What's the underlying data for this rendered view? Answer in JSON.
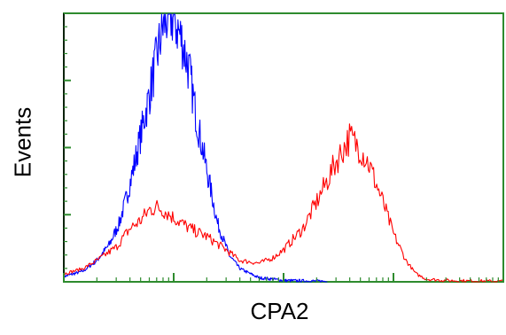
{
  "chart_data": {
    "type": "line",
    "title": "",
    "xlabel": "CPA2",
    "ylabel": "Events",
    "x_scale": "log",
    "xlim": [
      1,
      10000
    ],
    "ylim": [
      0,
      1
    ],
    "grid": false,
    "legend": "none",
    "axis_color": "#2e8b2e",
    "series": [
      {
        "color": "#0000ff",
        "x": [
          1,
          1.5,
          2,
          2.6,
          3.2,
          3.8,
          4.5,
          5.2,
          6,
          7,
          8,
          9,
          10,
          12,
          14,
          16,
          20,
          25,
          32,
          40,
          50,
          60,
          80,
          100,
          130,
          170,
          250
        ],
        "y": [
          0.02,
          0.04,
          0.08,
          0.14,
          0.22,
          0.33,
          0.46,
          0.58,
          0.7,
          0.84,
          0.96,
          1.0,
          0.99,
          0.9,
          0.78,
          0.62,
          0.42,
          0.22,
          0.1,
          0.05,
          0.03,
          0.015,
          0.01,
          0.005,
          0.004,
          0.003,
          0.002
        ]
      },
      {
        "color": "#ff0000",
        "x": [
          1,
          1.5,
          2,
          3,
          4,
          5,
          6,
          7,
          8,
          10,
          14,
          20,
          30,
          40,
          60,
          80,
          100,
          150,
          200,
          250,
          300,
          350,
          400,
          500,
          600,
          800,
          1000,
          1300,
          1600,
          2000,
          3000,
          5000,
          10000
        ],
        "y": [
          0.03,
          0.05,
          0.08,
          0.13,
          0.2,
          0.23,
          0.27,
          0.28,
          0.27,
          0.24,
          0.2,
          0.17,
          0.12,
          0.08,
          0.07,
          0.09,
          0.12,
          0.2,
          0.3,
          0.38,
          0.45,
          0.5,
          0.54,
          0.5,
          0.44,
          0.3,
          0.18,
          0.08,
          0.03,
          0.01,
          0.005,
          0.003,
          0.002
        ]
      }
    ]
  }
}
